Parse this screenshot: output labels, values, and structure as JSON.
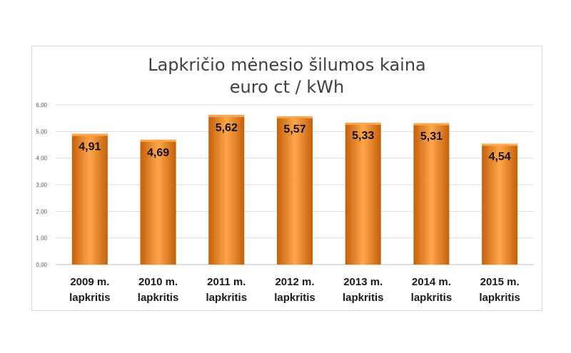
{
  "chart_data": {
    "type": "bar",
    "title_lines": [
      "Lapkričio mėnesio šilumos kaina",
      "euro ct / kWh"
    ],
    "categories": [
      [
        "2009 m.",
        "lapkritis"
      ],
      [
        "2010 m.",
        "lapkritis"
      ],
      [
        "2011 m.",
        "lapkritis"
      ],
      [
        "2012 m.",
        "lapkritis"
      ],
      [
        "2013 m.",
        "lapkritis"
      ],
      [
        "2014 m.",
        "lapkritis"
      ],
      [
        "2015 m.",
        "lapkritis"
      ]
    ],
    "values": [
      4.91,
      4.69,
      5.62,
      5.57,
      5.33,
      5.31,
      4.54
    ],
    "data_labels": [
      "4,91",
      "4,69",
      "5,62",
      "5,57",
      "5,33",
      "5,31",
      "4,54"
    ],
    "ylim": [
      0,
      6
    ],
    "yticks": [
      0,
      1,
      2,
      3,
      4,
      5,
      6
    ],
    "ytick_labels": [
      "0,00",
      "1,00",
      "2,00",
      "3,00",
      "4,00",
      "5,00",
      "6,00"
    ],
    "grid": true,
    "legend": "none",
    "bar_color": "#e87f0c",
    "bar_highlight": "#ffa64a",
    "bar_shadow": "#c5600a"
  }
}
